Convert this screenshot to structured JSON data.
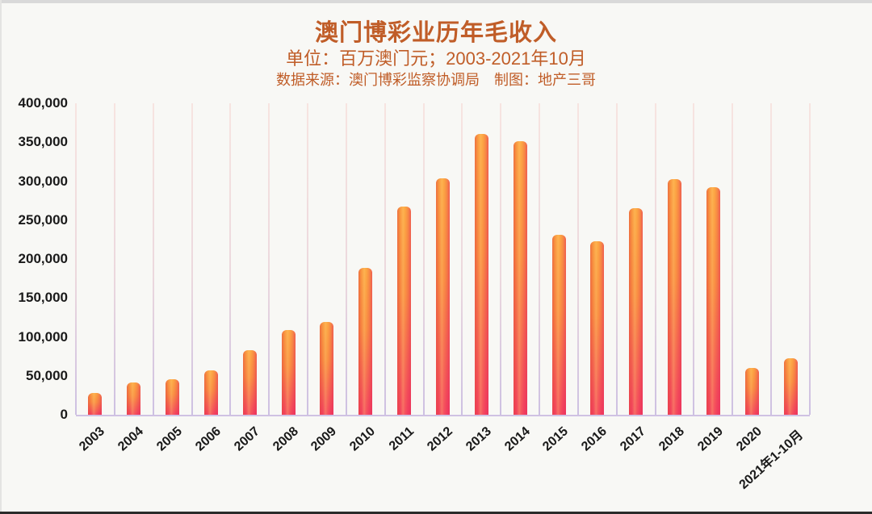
{
  "frame": {
    "background": "#f8f8f5",
    "top_strip_color": "#d9d9d9",
    "bottom_strip_color": "#2b2b2b"
  },
  "header": {
    "title": "澳门博彩业历年毛收入",
    "subtitle": "单位：百万澳门元；2003-2021年10月",
    "source": "数据来源：澳门博彩监察协调局　制图：地产三哥",
    "text_color": "#c05d28"
  },
  "chart_data": {
    "type": "bar",
    "title": "澳门博彩业历年毛收入",
    "unit_note": "单位：百万澳门元；2003-2021年10月",
    "source_note": "数据来源：澳门博彩监察协调局",
    "credit_note": "制图：地产三哥",
    "categories": [
      "2003",
      "2004",
      "2005",
      "2006",
      "2007",
      "2008",
      "2009",
      "2010",
      "2011",
      "2012",
      "2013",
      "2014",
      "2015",
      "2016",
      "2017",
      "2018",
      "2019",
      "2020",
      "2021年1-10月"
    ],
    "values": [
      28055,
      41379,
      45812,
      56623,
      83022,
      108772,
      119355,
      188343,
      267867,
      304139,
      360749,
      351521,
      230840,
      223211,
      265743,
      302846,
      292456,
      60442,
      72154
    ],
    "xlabel": "",
    "ylabel": "",
    "ylim": [
      0,
      400000
    ],
    "ytick_step": 50000,
    "ytick_labels": [
      "0",
      "50,000",
      "100,000",
      "150,000",
      "200,000",
      "250,000",
      "300,000",
      "350,000",
      "400,000"
    ],
    "grid": "vertical-only",
    "legend_position": "none",
    "bar_gradient_top": "#fca440",
    "bar_gradient_bottom": "#f4415f",
    "gridline_top_color": "#f7e4e0",
    "gridline_bottom_color": "#cdc0e2",
    "axis_label_color": "#1a1a1a",
    "x_label_rotation_deg": -42
  }
}
